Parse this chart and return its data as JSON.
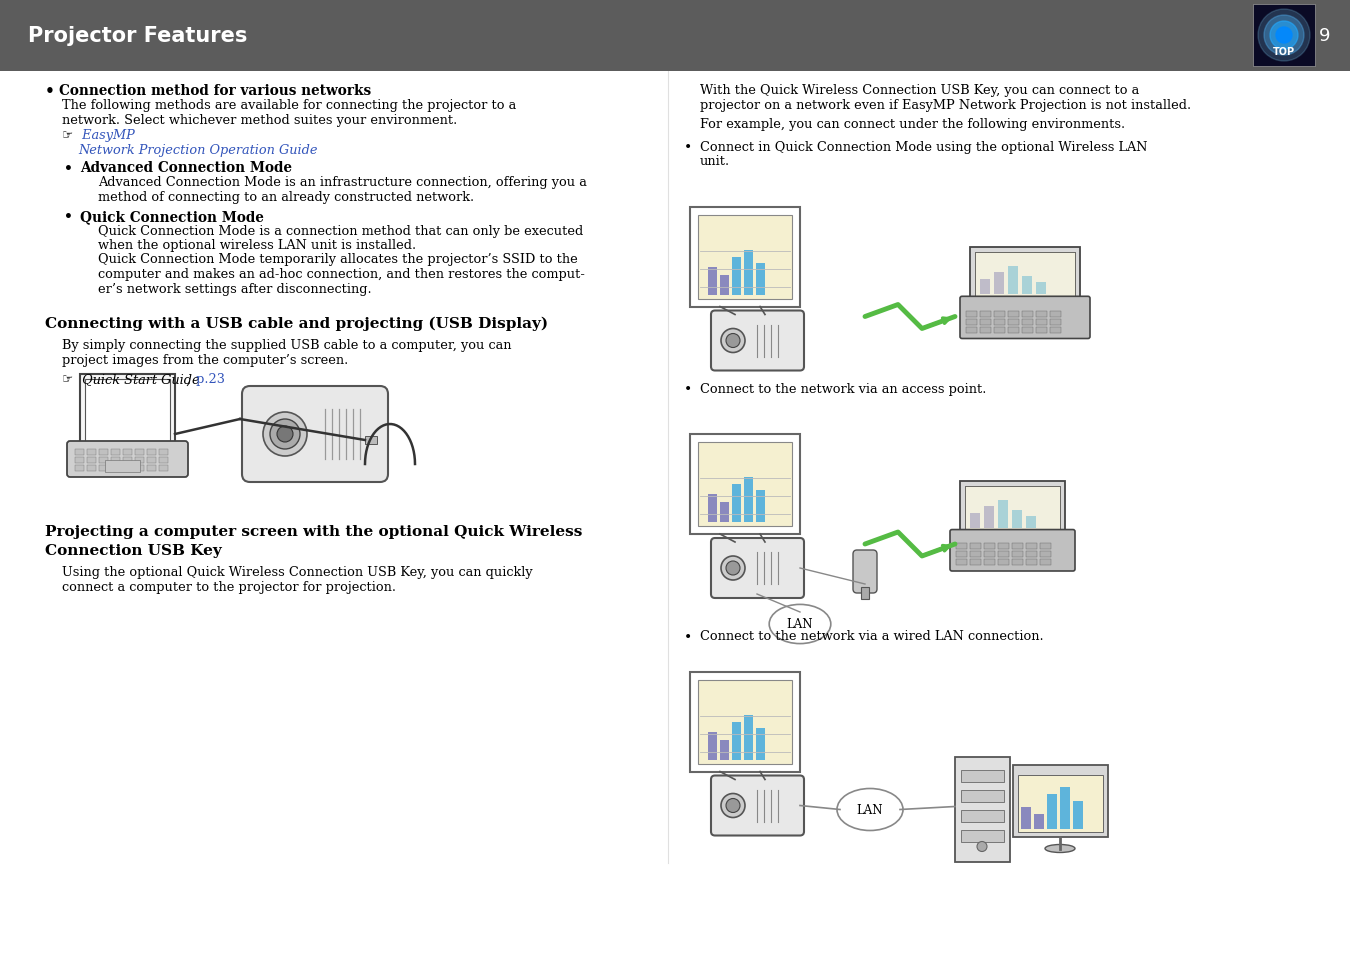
{
  "header_bg": "#5c5c5c",
  "header_text": "Projector Features",
  "header_text_color": "#ffffff",
  "page_number": "9",
  "page_bg": "#ffffff",
  "link_color": "#3355bb",
  "section1_title": "Connection method for various networks",
  "section1_body1a": "The following methods are available for connecting the projector to a",
  "section1_body1b": "network. Select whichever method suites your environment.",
  "section1_link_pre": "☞  ",
  "section1_link1": "EasyMP",
  "section1_link2": "Network Projection Operation Guide",
  "section1_sub1_title": "Advanced Connection Mode",
  "section1_sub1_body1": "Advanced Connection Mode is an infrastructure connection, offering you a",
  "section1_sub1_body2": "method of connecting to an already constructed network.",
  "section1_sub2_title": "Quick Connection Mode",
  "section1_sub2_b1": "Quick Connection Mode is a connection method that can only be executed",
  "section1_sub2_b2": "when the optional wireless LAN unit is installed.",
  "section1_sub2_b3": "Quick Connection Mode temporarily allocates the projector’s SSID to the",
  "section1_sub2_b4": "computer and makes an ad-hoc connection, and then restores the comput-",
  "section1_sub2_b5": "er’s network settings after disconnecting.",
  "section2_title": "Connecting with a USB cable and projecting (USB Display)",
  "section2_body1": "By simply connecting the supplied USB cable to a computer, you can",
  "section2_body2": "project images from the computer’s screen.",
  "section2_ref_italic": "Quick Start Guide",
  "section2_ref_comma": " ,",
  "section2_ref_link": "p.23",
  "section3_title1": "Projecting a computer screen with the optional Quick Wireless",
  "section3_title2": "Connection USB Key",
  "section3_body1": "Using the optional Quick Wireless Connection USB Key, you can quickly",
  "section3_body2": "connect a computer to the projector for projection.",
  "right_intro1a": "With the Quick Wireless Connection USB Key, you can connect to a",
  "right_intro1b": "projector on a network even if EasyMP Network Projection is not installed.",
  "right_intro2": "For example, you can connect under the following environments.",
  "right_b1a": "Connect in Quick Connection Mode using the optional Wireless LAN",
  "right_b1b": "unit.",
  "right_b2": "Connect to the network via an access point.",
  "right_b3": "Connect to the network via a wired LAN connection.",
  "screen_bar_colors": [
    "#7777bb",
    "#7777bb",
    "#44aadd",
    "#44aadd",
    "#44aadd"
  ],
  "screen_bg": "#f5f0d0",
  "lan_circle_color": "#ffffff"
}
